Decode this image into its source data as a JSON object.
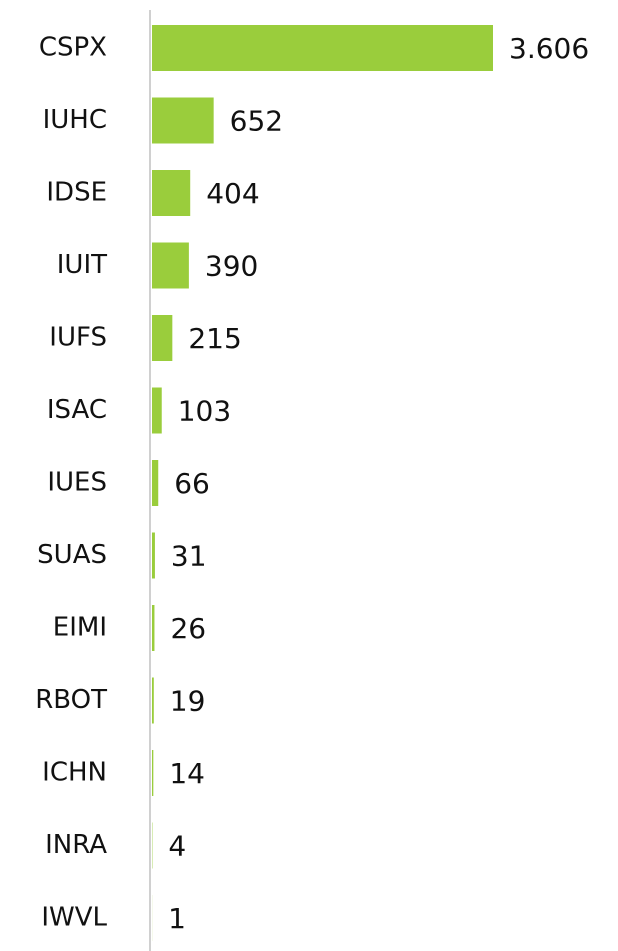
{
  "chart_data": {
    "type": "bar",
    "orientation": "horizontal",
    "categories": [
      "CSPX",
      "IUHC",
      "IDSE",
      "IUIT",
      "IUFS",
      "ISAC",
      "IUES",
      "SUAS",
      "EIMI",
      "RBOT",
      "ICHN",
      "INRA",
      "IWVL"
    ],
    "values": [
      3606,
      652,
      404,
      390,
      215,
      103,
      66,
      31,
      26,
      19,
      14,
      4,
      1
    ],
    "value_labels": [
      "3.606",
      "652",
      "404",
      "390",
      "215",
      "103",
      "66",
      "31",
      "26",
      "19",
      "14",
      "4",
      "1"
    ],
    "color": "#9acd3c"
  }
}
